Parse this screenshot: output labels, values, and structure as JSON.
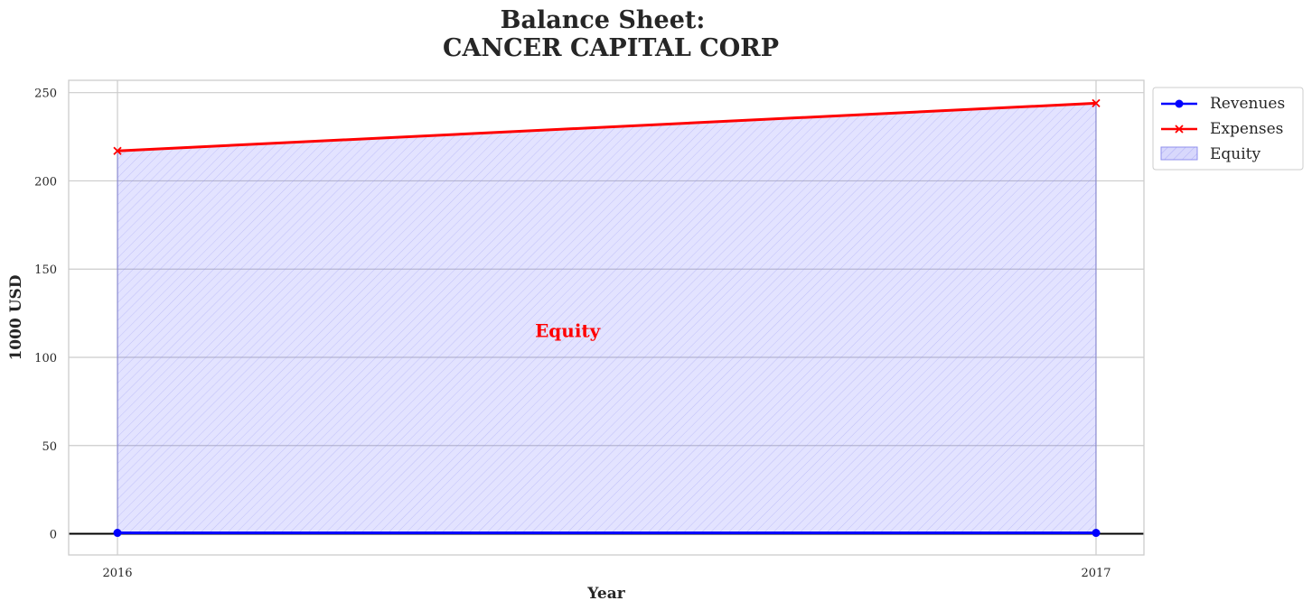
{
  "chart_data": {
    "type": "area",
    "title": "Balance Sheet:",
    "subtitle": "CANCER CAPITAL CORP",
    "xlabel": "Year",
    "ylabel": "1000 USD",
    "x": [
      "2016",
      "2017"
    ],
    "ylim": [
      -12,
      257
    ],
    "yticks": [
      0,
      50,
      100,
      150,
      200,
      250
    ],
    "grid": true,
    "series": [
      {
        "name": "Revenues",
        "values": [
          0.5,
          0.5
        ],
        "color": "#0000ff",
        "marker": "circle"
      },
      {
        "name": "Expenses",
        "values": [
          217,
          244
        ],
        "color": "#ff0000",
        "marker": "x"
      }
    ],
    "fill": {
      "name": "Equity",
      "between": [
        "Revenues",
        "Expenses"
      ],
      "color": "#0000ff",
      "hatch": true
    },
    "annotation": {
      "text": "Equity",
      "x": 0.46,
      "y": 115,
      "color": "#ff0000"
    },
    "legend": {
      "position": "outside-top-right",
      "entries": [
        "Revenues",
        "Expenses",
        "Equity"
      ]
    }
  }
}
